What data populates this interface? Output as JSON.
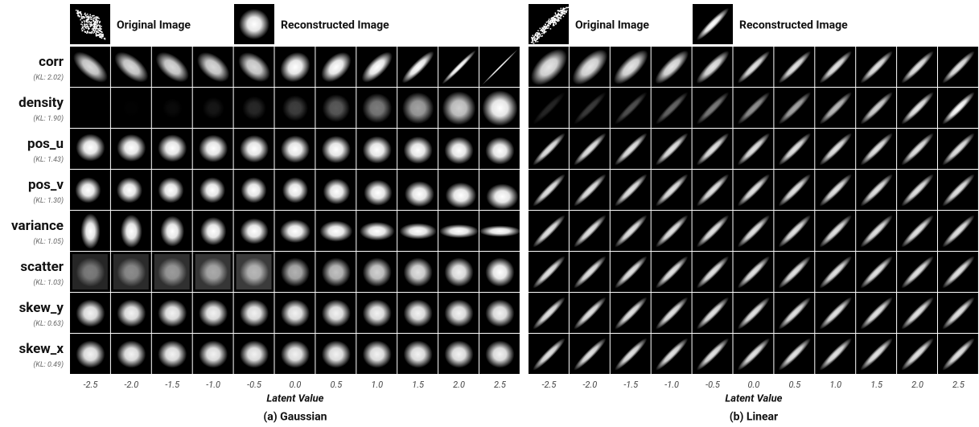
{
  "panels": [
    {
      "legend": [
        "Original Image",
        "Reconstructed Image"
      ],
      "rows": [
        {
          "name": "corr",
          "kl": "(KL: 2.02)"
        },
        {
          "name": "density",
          "kl": "(KL: 1.90)"
        },
        {
          "name": "pos_u",
          "kl": "(KL: 1.43)"
        },
        {
          "name": "pos_v",
          "kl": "(KL: 1.30)"
        },
        {
          "name": "variance",
          "kl": "(KL: 1.05)"
        },
        {
          "name": "scatter",
          "kl": "(KL: 1.03)"
        },
        {
          "name": "skew_y",
          "kl": "(KL: 0.63)"
        },
        {
          "name": "skew_x",
          "kl": "(KL: 0.49)"
        }
      ],
      "x_labels": [
        "-2.5",
        "-2.0",
        "-1.5",
        "-1.0",
        "-0.5",
        "0.0",
        "0.5",
        "1.0",
        "1.5",
        "2.0",
        "2.5"
      ],
      "x_title": "Latent Value",
      "caption": "(a) Gaussian"
    },
    {
      "legend": [
        "Original Image",
        "Reconstructed Image"
      ],
      "x_labels": [
        "-2.5",
        "-2.0",
        "-1.5",
        "-1.0",
        "-0.5",
        "0.0",
        "0.5",
        "1.0",
        "1.5",
        "2.0",
        "2.5"
      ],
      "x_title": "Latent Value",
      "caption": "(b) Linear"
    }
  ]
}
